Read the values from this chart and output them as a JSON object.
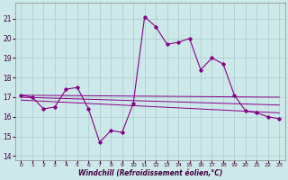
{
  "title": "",
  "xlabel": "Windchill (Refroidissement éolien,°C)",
  "ylabel": "",
  "background_color": "#cce8e8",
  "grid_color": "#aacccc",
  "line_color": "#880088",
  "xlim": [
    -0.5,
    23.5
  ],
  "ylim": [
    13.8,
    21.8
  ],
  "yticks": [
    14,
    15,
    16,
    17,
    18,
    19,
    20,
    21
  ],
  "xticks": [
    0,
    1,
    2,
    3,
    4,
    5,
    6,
    7,
    8,
    9,
    10,
    11,
    12,
    13,
    14,
    15,
    16,
    17,
    18,
    19,
    20,
    21,
    22,
    23
  ],
  "series_main": {
    "x": [
      0,
      1,
      2,
      3,
      4,
      5,
      6,
      7,
      8,
      9,
      10,
      11,
      12,
      13,
      14,
      15,
      16,
      17,
      18,
      19,
      20,
      21,
      22,
      23
    ],
    "y": [
      17.1,
      17.0,
      16.4,
      16.5,
      17.4,
      17.5,
      16.4,
      14.7,
      15.3,
      15.2,
      16.7,
      21.1,
      20.6,
      19.7,
      19.8,
      20.0,
      18.4,
      19.0,
      18.7,
      17.1,
      16.3,
      16.2,
      16.0,
      15.9
    ]
  },
  "trend_lines": [
    {
      "x": [
        0,
        23
      ],
      "y": [
        17.1,
        17.0
      ]
    },
    {
      "x": [
        0,
        23
      ],
      "y": [
        17.0,
        16.6
      ]
    },
    {
      "x": [
        0,
        23
      ],
      "y": [
        16.85,
        16.2
      ]
    }
  ]
}
